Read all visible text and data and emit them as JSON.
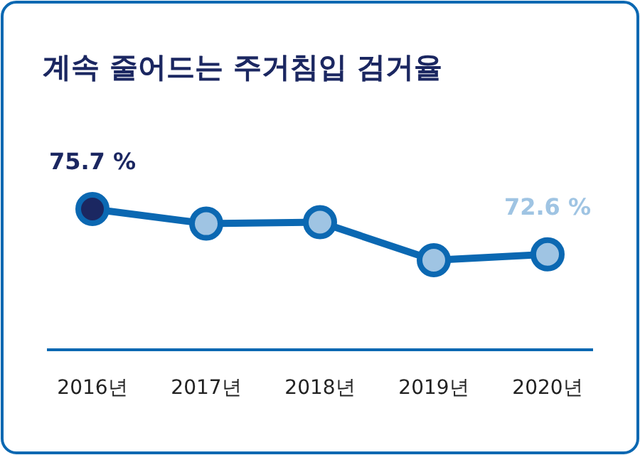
{
  "chart_data": {
    "type": "line",
    "title": "계속 줄어드는 주거침입 검거율",
    "categories": [
      "2016년",
      "2017년",
      "2018년",
      "2019년",
      "2020년"
    ],
    "series": [
      {
        "color": "#0b68b2",
        "values": [
          75.7,
          74.7,
          74.8,
          72.2,
          72.6
        ],
        "colors": [
          "#1b2761",
          "#9fc4e3",
          "#9fc4e3",
          "#9fc4e3",
          "#9fc4e3"
        ],
        "value_labels": [
          "75.7 %",
          null,
          null,
          null,
          "72.6 %"
        ]
      }
    ],
    "marker": "circle",
    "line_style": "solid"
  }
}
